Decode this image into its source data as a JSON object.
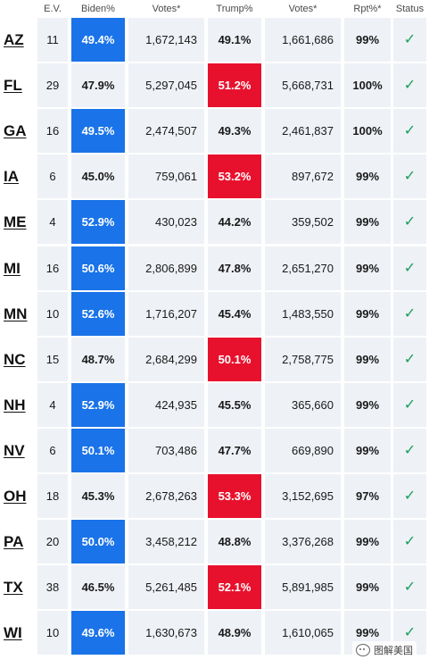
{
  "headers": {
    "ev": "E.V.",
    "biden": "Biden%",
    "biden_votes": "Votes*",
    "trump": "Trump%",
    "trump_votes": "Votes*",
    "rpt": "Rpt%*",
    "status": "Status"
  },
  "colors": {
    "dem": "#1a73e8",
    "rep": "#e8112d",
    "cell_bg": "#eef1f6",
    "check": "#1a9f5a"
  },
  "status_icon": "check-icon",
  "rows": [
    {
      "state": "AZ",
      "ev": "11",
      "biden": "49.4%",
      "biden_votes": "1,672,143",
      "trump": "49.1%",
      "trump_votes": "1,661,686",
      "rpt": "99%",
      "winner": "dem"
    },
    {
      "state": "FL",
      "ev": "29",
      "biden": "47.9%",
      "biden_votes": "5,297,045",
      "trump": "51.2%",
      "trump_votes": "5,668,731",
      "rpt": "100%",
      "winner": "rep"
    },
    {
      "state": "GA",
      "ev": "16",
      "biden": "49.5%",
      "biden_votes": "2,474,507",
      "trump": "49.3%",
      "trump_votes": "2,461,837",
      "rpt": "100%",
      "winner": "dem"
    },
    {
      "state": "IA",
      "ev": "6",
      "biden": "45.0%",
      "biden_votes": "759,061",
      "trump": "53.2%",
      "trump_votes": "897,672",
      "rpt": "99%",
      "winner": "rep"
    },
    {
      "state": "ME",
      "ev": "4",
      "biden": "52.9%",
      "biden_votes": "430,023",
      "trump": "44.2%",
      "trump_votes": "359,502",
      "rpt": "99%",
      "winner": "dem"
    },
    {
      "state": "MI",
      "ev": "16",
      "biden": "50.6%",
      "biden_votes": "2,806,899",
      "trump": "47.8%",
      "trump_votes": "2,651,270",
      "rpt": "99%",
      "winner": "dem"
    },
    {
      "state": "MN",
      "ev": "10",
      "biden": "52.6%",
      "biden_votes": "1,716,207",
      "trump": "45.4%",
      "trump_votes": "1,483,550",
      "rpt": "99%",
      "winner": "dem"
    },
    {
      "state": "NC",
      "ev": "15",
      "biden": "48.7%",
      "biden_votes": "2,684,299",
      "trump": "50.1%",
      "trump_votes": "2,758,775",
      "rpt": "99%",
      "winner": "rep"
    },
    {
      "state": "NH",
      "ev": "4",
      "biden": "52.9%",
      "biden_votes": "424,935",
      "trump": "45.5%",
      "trump_votes": "365,660",
      "rpt": "99%",
      "winner": "dem"
    },
    {
      "state": "NV",
      "ev": "6",
      "biden": "50.1%",
      "biden_votes": "703,486",
      "trump": "47.7%",
      "trump_votes": "669,890",
      "rpt": "99%",
      "winner": "dem"
    },
    {
      "state": "OH",
      "ev": "18",
      "biden": "45.3%",
      "biden_votes": "2,678,263",
      "trump": "53.3%",
      "trump_votes": "3,152,695",
      "rpt": "97%",
      "winner": "rep"
    },
    {
      "state": "PA",
      "ev": "20",
      "biden": "50.0%",
      "biden_votes": "3,458,212",
      "trump": "48.8%",
      "trump_votes": "3,376,268",
      "rpt": "99%",
      "winner": "dem"
    },
    {
      "state": "TX",
      "ev": "38",
      "biden": "46.5%",
      "biden_votes": "5,261,485",
      "trump": "52.1%",
      "trump_votes": "5,891,985",
      "rpt": "99%",
      "winner": "rep"
    },
    {
      "state": "WI",
      "ev": "10",
      "biden": "49.6%",
      "biden_votes": "1,630,673",
      "trump": "48.9%",
      "trump_votes": "1,610,065",
      "rpt": "99%",
      "winner": "dem"
    }
  ],
  "watermark": {
    "text": "图解美国"
  }
}
